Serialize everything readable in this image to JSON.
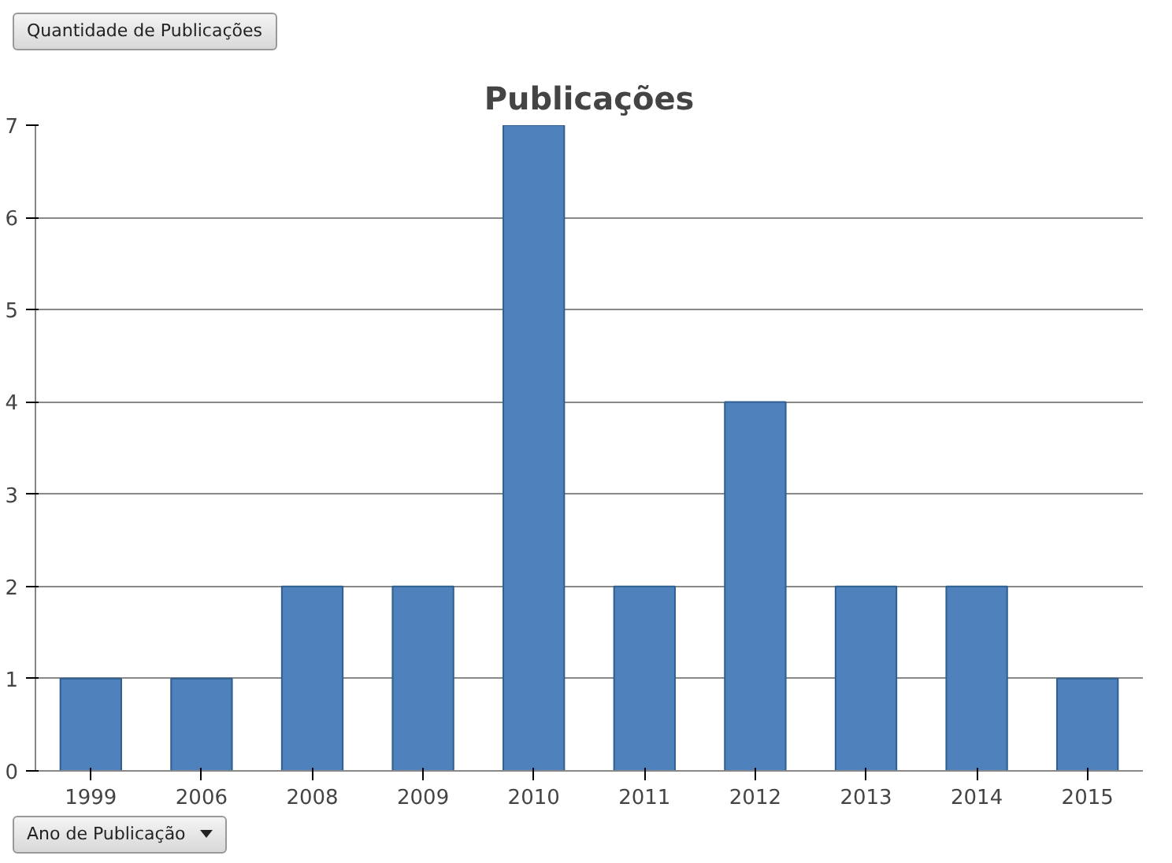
{
  "chart_data": {
    "type": "bar",
    "title": "Publicações",
    "ylabel": "Quantidade de Publicações",
    "xlabel": "Ano de Publicação",
    "categories": [
      "1999",
      "2006",
      "2008",
      "2009",
      "2010",
      "2011",
      "2012",
      "2013",
      "2014",
      "2015"
    ],
    "values": [
      1,
      1,
      2,
      2,
      7,
      2,
      4,
      2,
      2,
      1
    ],
    "color": "#4f81bd",
    "ylim": [
      0,
      7
    ],
    "yticks": [
      0,
      1,
      2,
      3,
      4,
      5,
      6,
      7
    ],
    "grid": "y"
  }
}
